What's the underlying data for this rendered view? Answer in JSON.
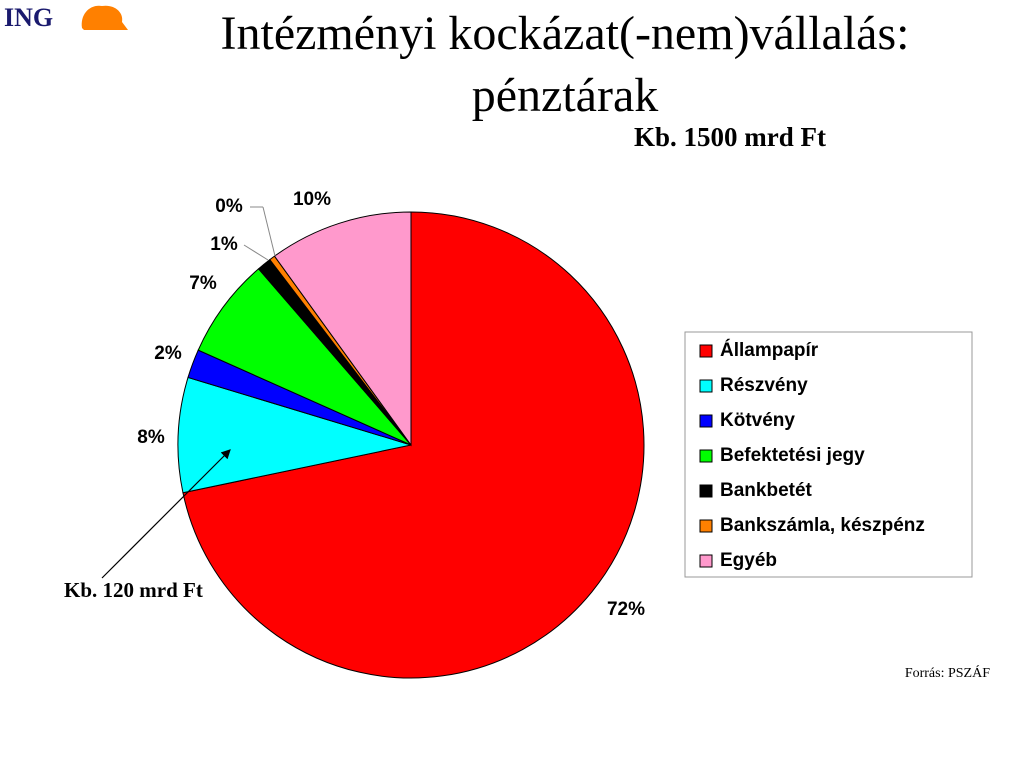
{
  "logo": "ING",
  "chart_data": {
    "type": "pie",
    "title": [
      "Intézményi kockázat(-nem)vállalás:",
      "pénztárak"
    ],
    "subtitle": "Kb. 1500 mrd Ft",
    "categories": [
      "Állampapír",
      "Részvény",
      "Kötvény",
      "Befektetési jegy",
      "Bankbetét",
      "Bankszámla, készpénz",
      "Egyéb"
    ],
    "values": [
      72,
      8,
      2,
      7,
      1,
      0.4,
      10
    ],
    "value_labels": [
      "72%",
      "8%",
      "2%",
      "7%",
      "1%",
      "0%",
      "10%"
    ],
    "colors": [
      "#ff0000",
      "#00ffff",
      "#0000ff",
      "#00ff00",
      "#000000",
      "#ff8000",
      "#ff99cc"
    ],
    "legend": "right",
    "annotations": [
      "Kb. 120 mrd Ft"
    ],
    "source": "Forrás: PSZÁF"
  }
}
